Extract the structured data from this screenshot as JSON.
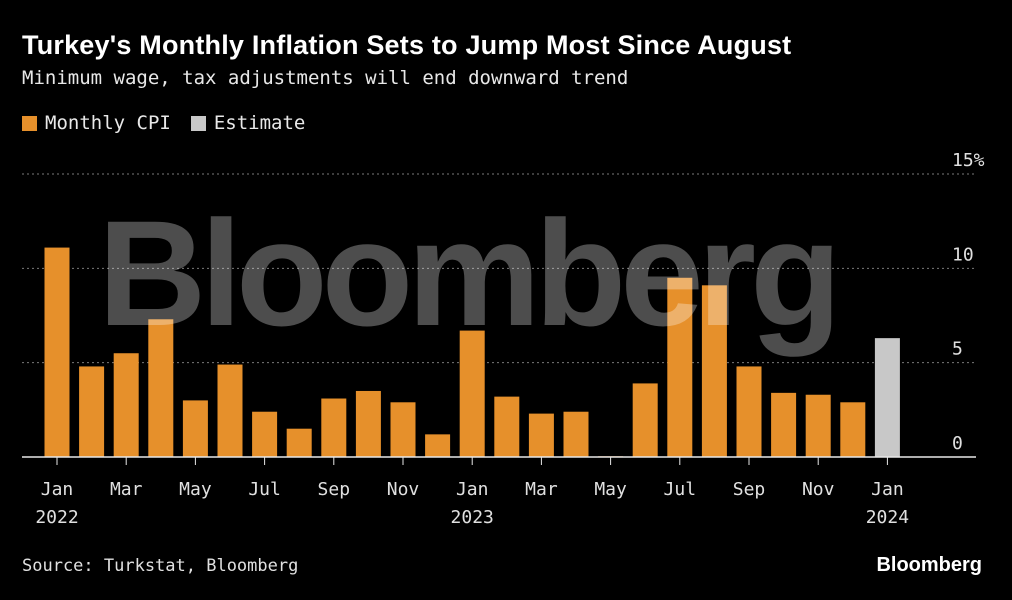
{
  "title": "Turkey's Monthly Inflation Sets to Jump Most Since August",
  "subtitle": "Minimum wage, tax adjustments will end downward trend",
  "legend": [
    {
      "label": "Monthly CPI",
      "color": "#e6902b"
    },
    {
      "label": "Estimate",
      "color": "#c8c8c8"
    }
  ],
  "source": "Source: Turkstat, Bloomberg",
  "brand": "Bloomberg",
  "watermark": "Bloomberg",
  "chart_data": {
    "type": "bar",
    "title": "Turkey's Monthly Inflation Sets to Jump Most Since August",
    "ylabel": "",
    "xlabel": "",
    "ylim": [
      0,
      15
    ],
    "y_ticks": [
      "0",
      "5",
      "10",
      "15%"
    ],
    "grid": true,
    "categories": [
      "Jan 2022",
      "Feb 2022",
      "Mar 2022",
      "Apr 2022",
      "May 2022",
      "Jun 2022",
      "Jul 2022",
      "Aug 2022",
      "Sep 2022",
      "Oct 2022",
      "Nov 2022",
      "Dec 2022",
      "Jan 2023",
      "Feb 2023",
      "Mar 2023",
      "Apr 2023",
      "May 2023",
      "Jun 2023",
      "Jul 2023",
      "Aug 2023",
      "Sep 2023",
      "Oct 2023",
      "Nov 2023",
      "Dec 2023",
      "Jan 2024"
    ],
    "x_tick_labels": [
      {
        "index": 0,
        "month": "Jan",
        "year": "2022"
      },
      {
        "index": 2,
        "month": "Mar",
        "year": ""
      },
      {
        "index": 4,
        "month": "May",
        "year": ""
      },
      {
        "index": 6,
        "month": "Jul",
        "year": ""
      },
      {
        "index": 8,
        "month": "Sep",
        "year": ""
      },
      {
        "index": 10,
        "month": "Nov",
        "year": ""
      },
      {
        "index": 12,
        "month": "Jan",
        "year": "2023"
      },
      {
        "index": 14,
        "month": "Mar",
        "year": ""
      },
      {
        "index": 16,
        "month": "May",
        "year": ""
      },
      {
        "index": 18,
        "month": "Jul",
        "year": ""
      },
      {
        "index": 20,
        "month": "Sep",
        "year": ""
      },
      {
        "index": 22,
        "month": "Nov",
        "year": ""
      },
      {
        "index": 24,
        "month": "Jan",
        "year": "2024"
      }
    ],
    "series": [
      {
        "name": "Monthly CPI",
        "color": "#e6902b",
        "values": [
          11.1,
          4.8,
          5.5,
          7.3,
          3.0,
          4.9,
          2.4,
          1.5,
          3.1,
          3.5,
          2.9,
          1.2,
          6.7,
          3.2,
          2.3,
          2.4,
          0.04,
          3.9,
          9.5,
          9.1,
          4.8,
          3.4,
          3.3,
          2.9,
          null
        ]
      },
      {
        "name": "Estimate",
        "color": "#c8c8c8",
        "values": [
          null,
          null,
          null,
          null,
          null,
          null,
          null,
          null,
          null,
          null,
          null,
          null,
          null,
          null,
          null,
          null,
          null,
          null,
          null,
          null,
          null,
          null,
          null,
          null,
          6.3
        ]
      }
    ]
  }
}
